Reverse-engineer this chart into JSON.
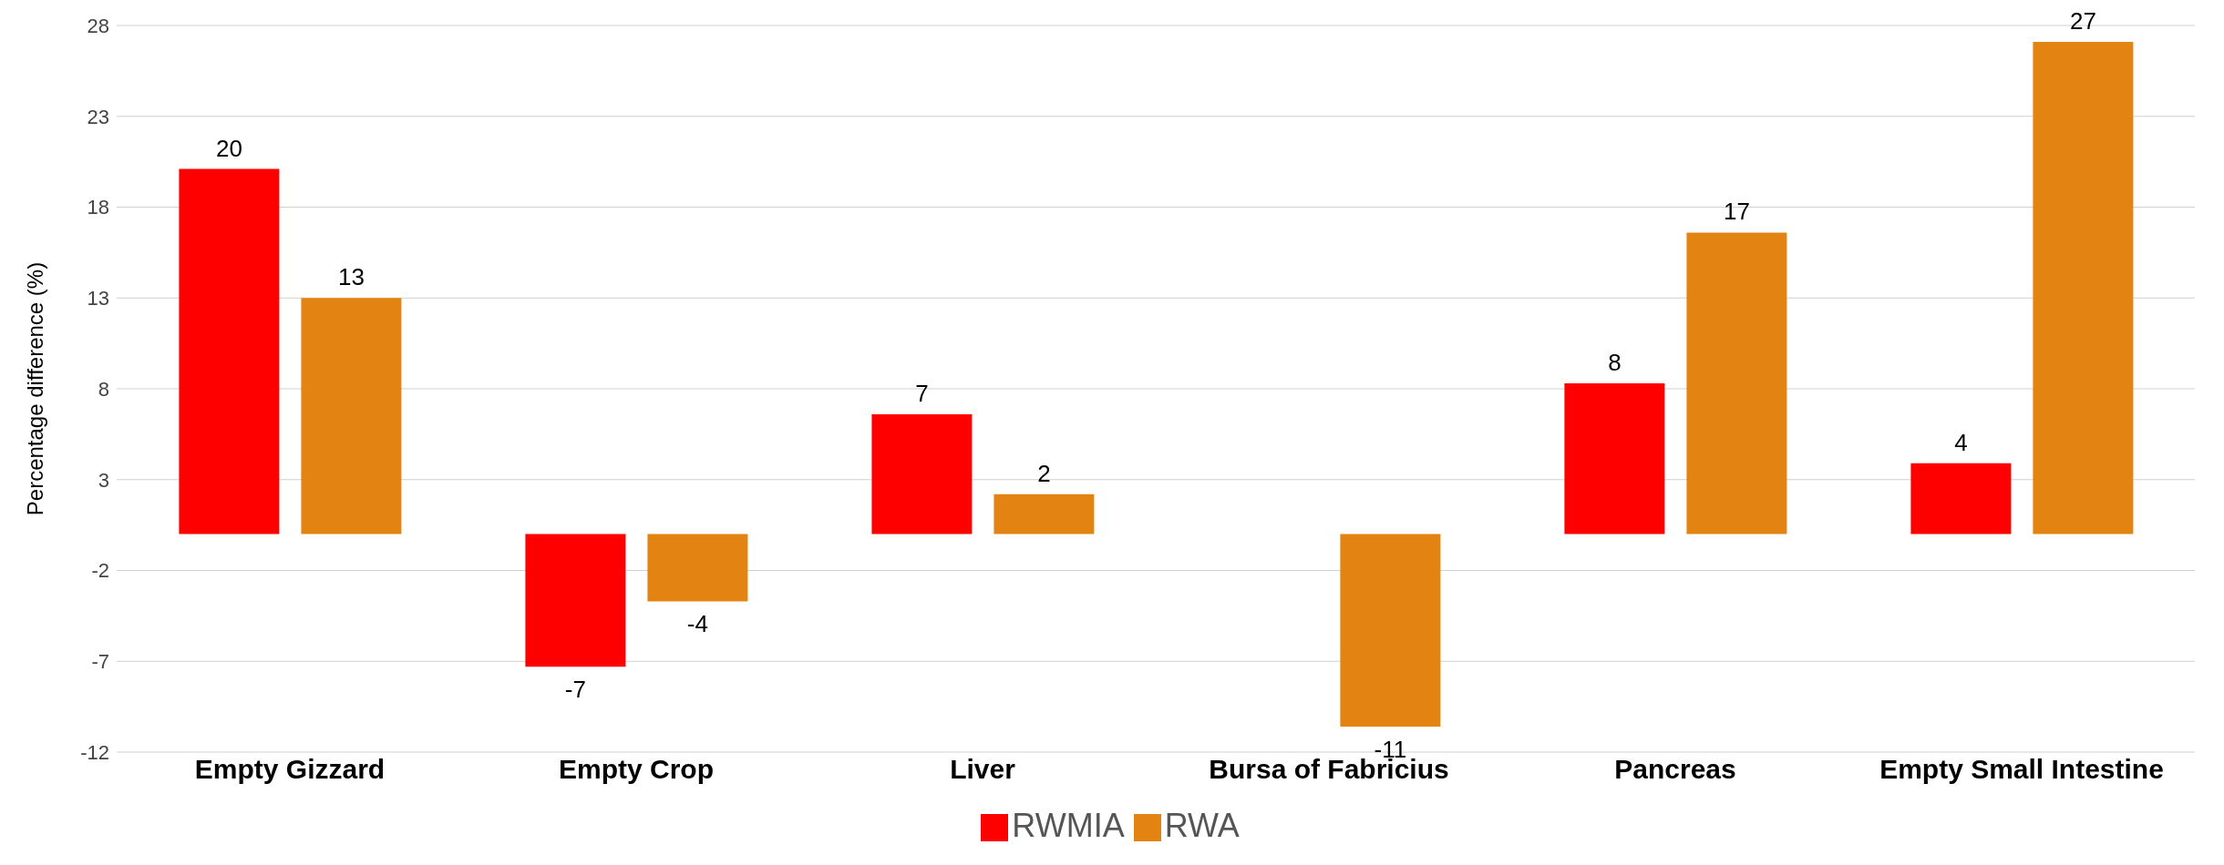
{
  "chart_data": {
    "type": "bar",
    "ylabel": "Percentage difference (%)",
    "categories": [
      "Empty Gizzard",
      "Empty Crop",
      "Liver",
      "Bursa of Fabricius",
      "Pancreas",
      "Empty Small Intestine"
    ],
    "series": [
      {
        "name": "RWMIA",
        "color": "#ff0000",
        "values": [
          20.1,
          -7.3,
          6.6,
          null,
          8.3,
          3.9
        ],
        "value_labels": [
          "20",
          "-7",
          "7",
          null,
          "8",
          "4"
        ]
      },
      {
        "name": "RWA",
        "color": "#e38312",
        "values": [
          13.0,
          -3.7,
          2.2,
          -10.6,
          16.6,
          27.1
        ],
        "value_labels": [
          "13",
          "-4",
          "2",
          "-11",
          "17",
          "27"
        ]
      }
    ],
    "ylim": [
      -12,
      28
    ],
    "yticks": [
      -12,
      -7,
      -2,
      3,
      8,
      13,
      18,
      23,
      28
    ],
    "grid": "y",
    "legend": "bottom"
  }
}
